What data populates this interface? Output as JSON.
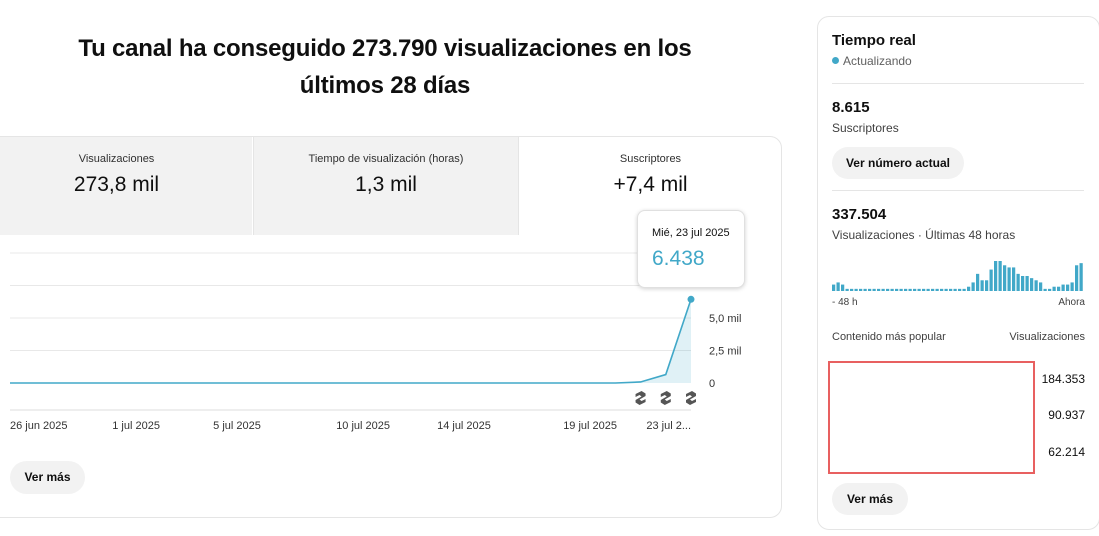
{
  "headline": {
    "line1": "Tu canal ha conseguido 273.790 visualizaciones en los",
    "line2": "últimos 28 días"
  },
  "metrics": [
    {
      "label": "Visualizaciones",
      "value": "273,8 mil"
    },
    {
      "label": "Tiempo de visualización (horas)",
      "value": "1,3 mil"
    },
    {
      "label": "Suscriptores",
      "value": "+7,4 mil"
    }
  ],
  "chart_data": {
    "type": "area",
    "x": [
      "26 jun 2025",
      "27 jun 2025",
      "28 jun 2025",
      "29 jun 2025",
      "30 jun 2025",
      "1 jul 2025",
      "2 jul 2025",
      "3 jul 2025",
      "4 jul 2025",
      "5 jul 2025",
      "6 jul 2025",
      "7 jul 2025",
      "8 jul 2025",
      "9 jul 2025",
      "10 jul 2025",
      "11 jul 2025",
      "12 jul 2025",
      "13 jul 2025",
      "14 jul 2025",
      "15 jul 2025",
      "16 jul 2025",
      "17 jul 2025",
      "18 jul 2025",
      "19 jul 2025",
      "20 jul 2025",
      "21 jul 2025",
      "22 jul 2025",
      "23 jul 2025"
    ],
    "values": [
      0,
      0,
      0,
      0,
      0,
      0,
      0,
      0,
      0,
      0,
      0,
      0,
      0,
      0,
      0,
      0,
      0,
      0,
      0,
      0,
      0,
      0,
      0,
      0,
      0,
      80,
      650,
      6438
    ],
    "xtick_labels": [
      "26 jun 2025",
      "1 jul 2025",
      "5 jul 2025",
      "10 jul 2025",
      "14 jul 2025",
      "19 jul 2025",
      "23 jul 2..."
    ],
    "xtick_dates": [
      "26 jun 2025",
      "1 jul 2025",
      "5 jul 2025",
      "10 jul 2025",
      "14 jul 2025",
      "19 jul 2025",
      "23 jul 2025"
    ],
    "ytick_labels": [
      "5,0 mil",
      "2,5 mil",
      "0"
    ],
    "ytick_values": [
      5000,
      2500,
      0
    ],
    "ylim": [
      0,
      10000
    ],
    "grid": true,
    "color": "#41a8c8"
  },
  "tooltip": {
    "date": "Mié, 23 jul 2025",
    "value": "6.438"
  },
  "shorts_icon": "shorts-icon",
  "main_more_button": "Ver más",
  "realtime": {
    "title": "Tiempo real",
    "status": "Actualizando",
    "status_color": "#41a8c8",
    "subscribers": "8.615",
    "subscribers_label": "Suscriptores",
    "current_button": "Ver número actual",
    "views": "337.504",
    "views_label": "Visualizaciones · Últimas 48 horas",
    "mini_bars": [
      3,
      4,
      3,
      1,
      1,
      1,
      1,
      1,
      1,
      1,
      1,
      1,
      1,
      1,
      1,
      1,
      1,
      1,
      1,
      1,
      1,
      1,
      1,
      1,
      1,
      1,
      1,
      1,
      1,
      1,
      2,
      4,
      8,
      5,
      5,
      10,
      14,
      14,
      12,
      11,
      11,
      8,
      7,
      7,
      6,
      5,
      4,
      1,
      1,
      2,
      2,
      3,
      3,
      4,
      12,
      13
    ],
    "axis_left": "- 48 h",
    "axis_right": "Ahora",
    "col_left": "Contenido más popular",
    "col_right": "Visualizaciones",
    "content_values": [
      "184.353",
      "90.937",
      "62.214"
    ],
    "more_button": "Ver más"
  }
}
